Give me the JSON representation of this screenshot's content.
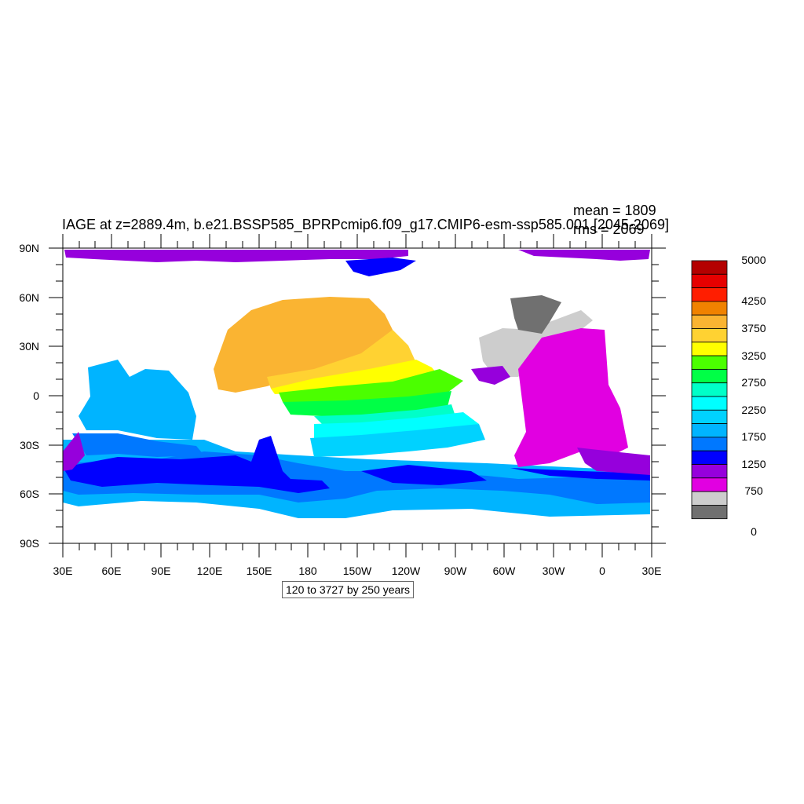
{
  "title": "IAGE at z=2889.4m, b.e21.BSSP585_BPRPcmip6.f09_g17.CMIP6-esm-ssp585.001 [2045-2069]",
  "stats": {
    "mean": "mean = 1809",
    "rms": "rms = 2069"
  },
  "contour_info": "120 to 3727 by 250 years",
  "axes": {
    "y_ticks": [
      "90N",
      "60N",
      "30N",
      "0",
      "30S",
      "60S",
      "90S"
    ],
    "x_ticks": [
      "30E",
      "60E",
      "90E",
      "120E",
      "150E",
      "180",
      "150W",
      "120W",
      "90W",
      "60W",
      "30W",
      "0",
      "30E"
    ]
  },
  "colorbar": {
    "labels": [
      "5000",
      "4250",
      "3750",
      "3250",
      "2750",
      "2250",
      "1750",
      "1250",
      "750",
      "0"
    ],
    "colors": [
      "#B40000",
      "#E60000",
      "#FF1E00",
      "#F08200",
      "#FAB432",
      "#FFD232",
      "#FFFF00",
      "#4BFF00",
      "#00FF46",
      "#00FFC8",
      "#00FFFF",
      "#00D2FF",
      "#00B4FF",
      "#0078FF",
      "#0000FF",
      "#9600DC",
      "#E100E1",
      "#CDCDCD",
      "#707070"
    ]
  },
  "chart_data": {
    "type": "heatmap",
    "variable": "IAGE",
    "depth": "z=2889.4m",
    "units": "years",
    "period": "2045-2069",
    "mean": 1809,
    "rms": 2069,
    "contour_min": 120,
    "contour_max": 3727,
    "contour_interval": 250,
    "lat_range": [
      -90,
      90
    ],
    "lon_range": [
      "30E",
      "30E"
    ],
    "colorbar_range": [
      0,
      5000
    ]
  }
}
